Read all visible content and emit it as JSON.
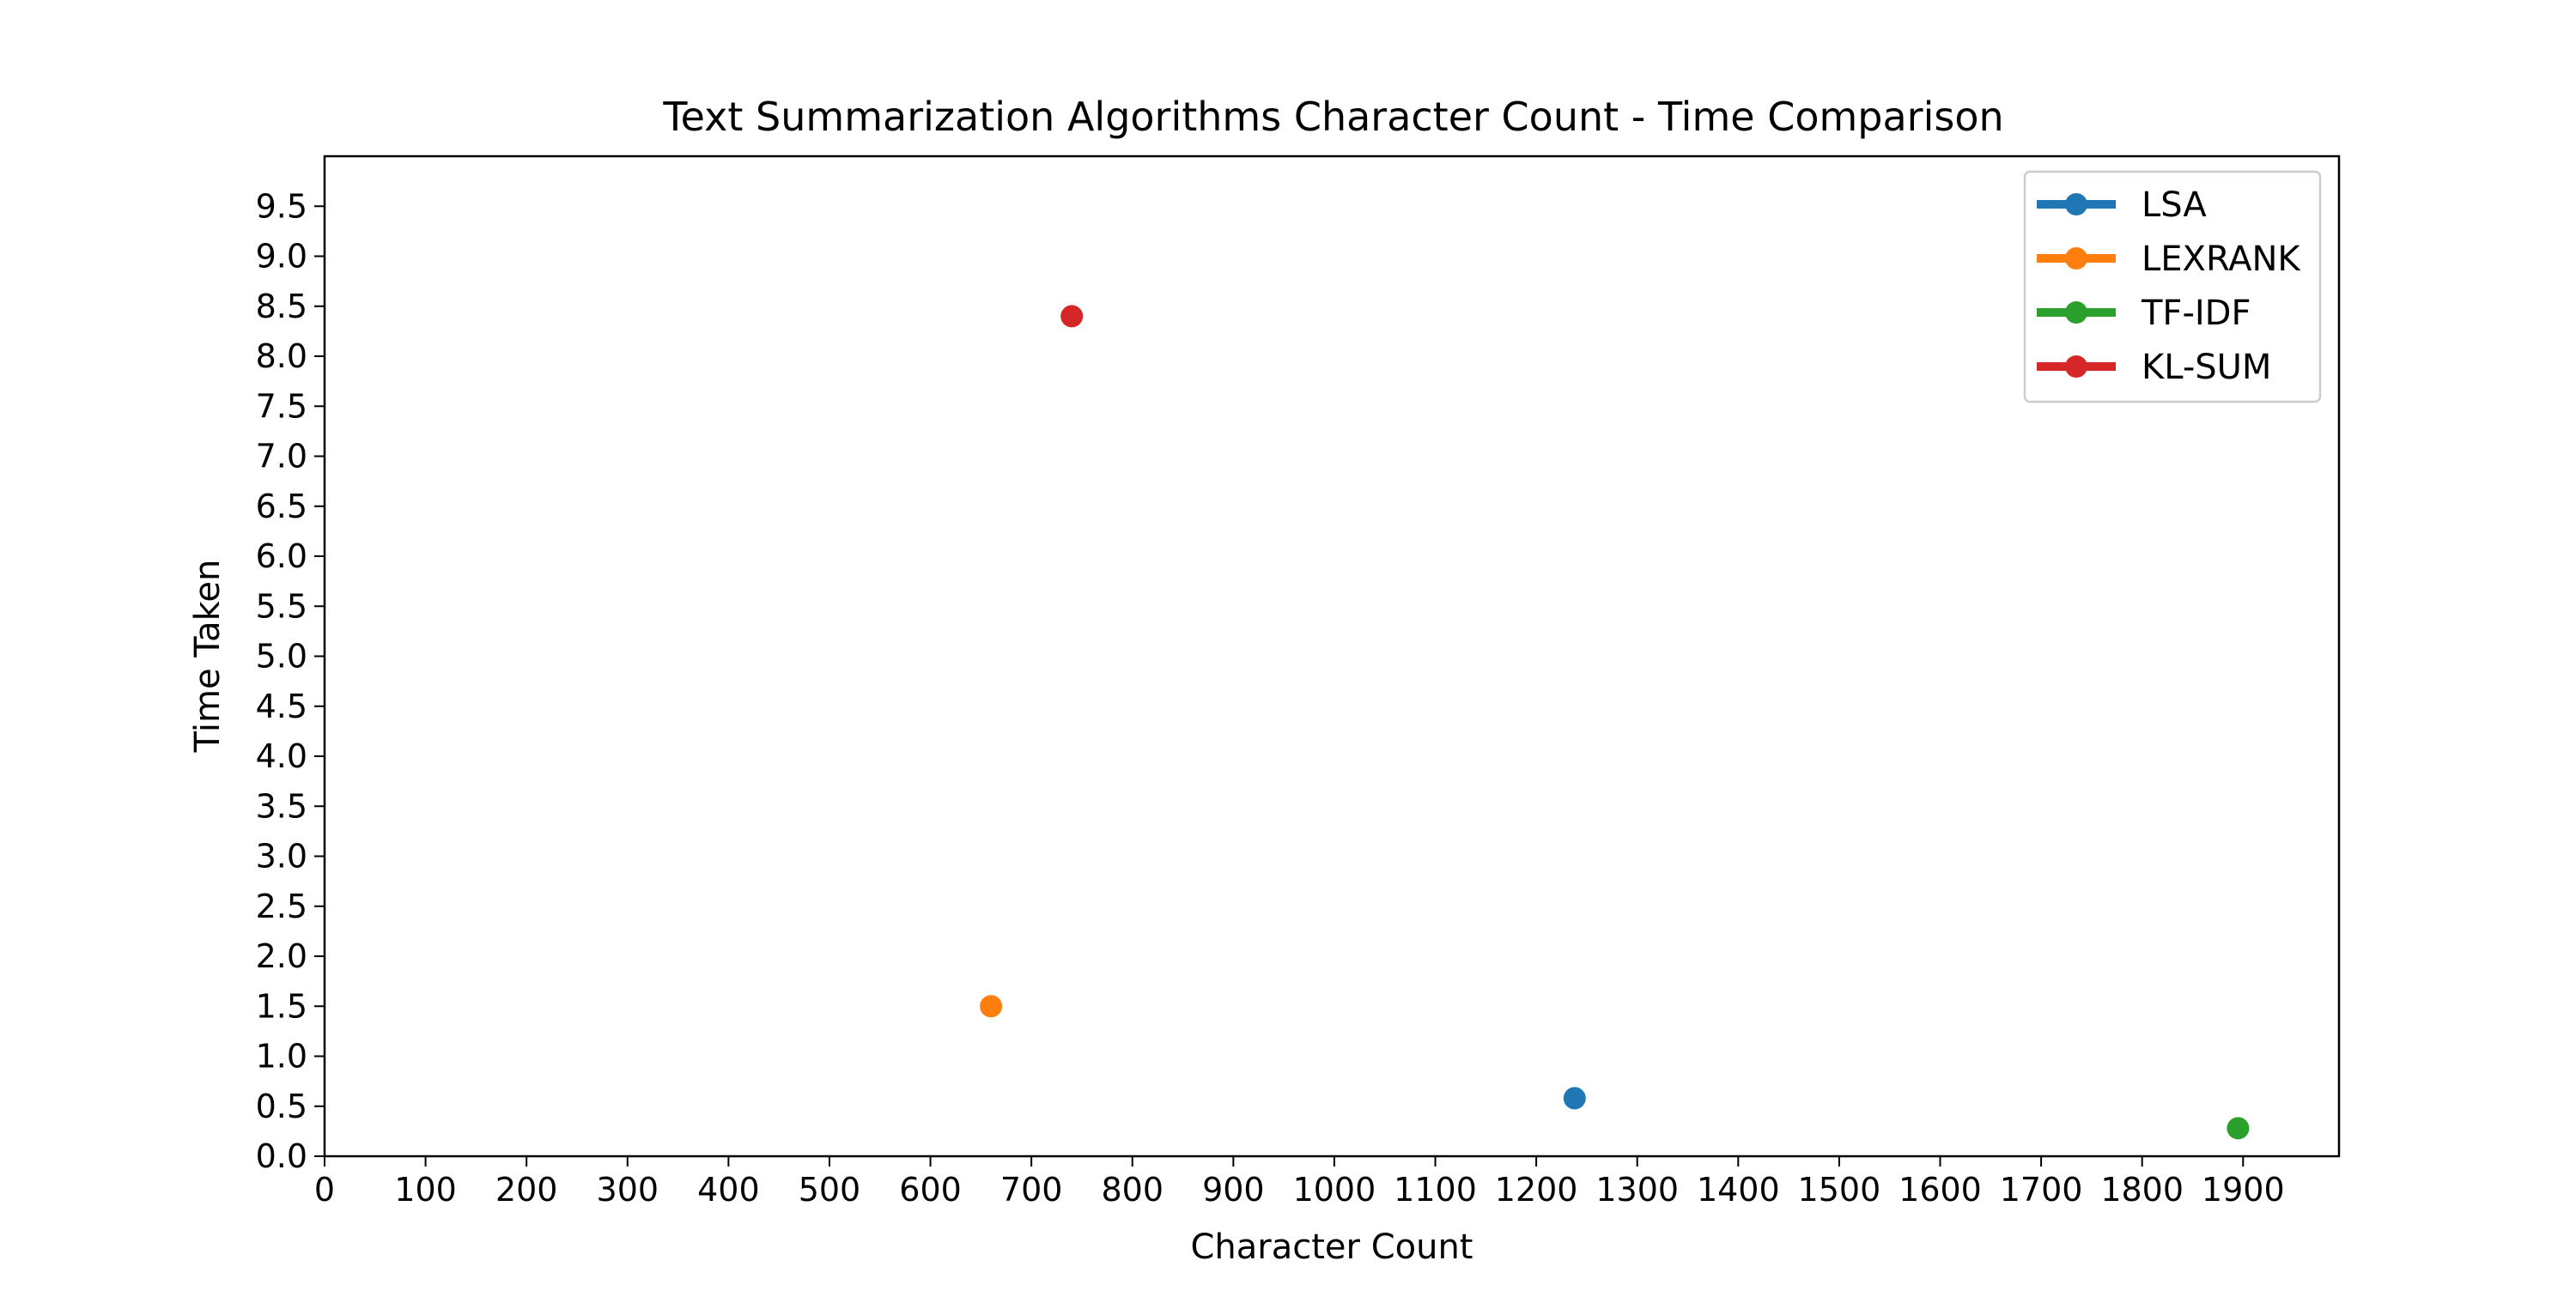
{
  "chart_data": {
    "type": "scatter",
    "title": "Text Summarization Algorithms Character Count - Time Comparison",
    "xlabel": "Character Count",
    "ylabel": "Time Taken",
    "xlim": [
      0,
      1995
    ],
    "ylim": [
      0,
      10.0
    ],
    "xticks": [
      0,
      100,
      200,
      300,
      400,
      500,
      600,
      700,
      800,
      900,
      1000,
      1100,
      1200,
      1300,
      1400,
      1500,
      1600,
      1700,
      1800,
      1900
    ],
    "yticks": [
      0.0,
      0.5,
      1.0,
      1.5,
      2.0,
      2.5,
      3.0,
      3.5,
      4.0,
      4.5,
      5.0,
      5.5,
      6.0,
      6.5,
      7.0,
      7.5,
      8.0,
      8.5,
      9.0,
      9.5
    ],
    "grid": false,
    "legend_position": "top-right",
    "series": [
      {
        "name": "LSA",
        "color": "#1f77b4",
        "points": [
          {
            "x": 1238,
            "y": 0.58
          }
        ]
      },
      {
        "name": "LEXRANK",
        "color": "#ff7f0e",
        "points": [
          {
            "x": 660,
            "y": 1.5
          }
        ]
      },
      {
        "name": "TF-IDF",
        "color": "#2ca02c",
        "points": [
          {
            "x": 1895,
            "y": 0.28
          }
        ]
      },
      {
        "name": "KL-SUM",
        "color": "#d62728",
        "points": [
          {
            "x": 740,
            "y": 8.4
          }
        ]
      }
    ]
  }
}
